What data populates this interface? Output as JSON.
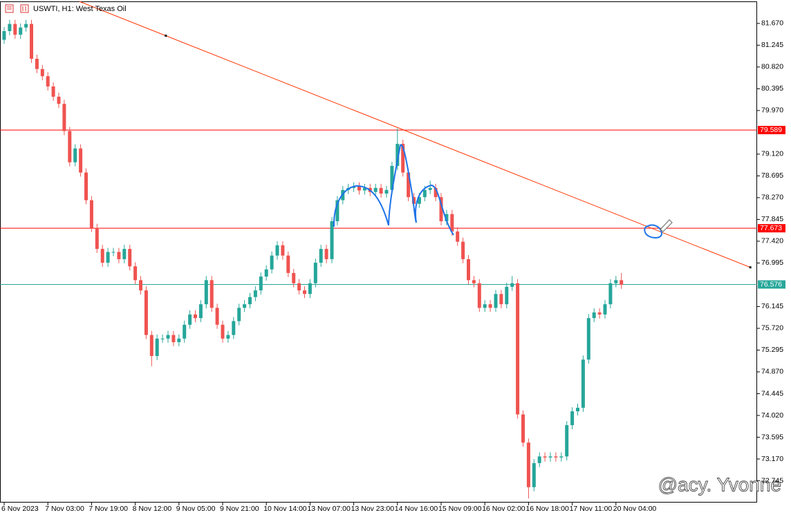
{
  "chart_data": {
    "type": "candlestick",
    "title": "USWTI, H1:  West Texas Oil",
    "watermark": "@acy. Yvonne",
    "up_color": "#26a69a",
    "down_color": "#ef5350",
    "categories": [
      "6 Nov 2023",
      null,
      null,
      null,
      null,
      null,
      null,
      null,
      "7 Nov 03:00",
      null,
      null,
      null,
      null,
      null,
      null,
      null,
      "7 Nov 19:00",
      null,
      null,
      null,
      null,
      null,
      null,
      null,
      "8 Nov 12:00",
      null,
      null,
      null,
      null,
      null,
      null,
      null,
      "9 Nov 05:00",
      null,
      null,
      null,
      null,
      null,
      null,
      null,
      "9 Nov 21:00",
      null,
      null,
      null,
      null,
      null,
      null,
      null,
      "10 Nov 14:00",
      null,
      null,
      null,
      null,
      null,
      null,
      null,
      "13 Nov 07:00",
      null,
      null,
      null,
      null,
      null,
      null,
      null,
      "13 Nov 23:00",
      null,
      null,
      null,
      null,
      null,
      null,
      null,
      "14 Nov 16:00",
      null,
      null,
      null,
      null,
      null,
      null,
      null,
      "15 Nov 09:00",
      null,
      null,
      null,
      null,
      null,
      null,
      null,
      "16 Nov 02:00",
      null,
      null,
      null,
      null,
      null,
      null,
      null,
      "16 Nov 18:00",
      null,
      null,
      null,
      null,
      null,
      null,
      null,
      "17 Nov 11:00",
      null,
      null,
      null,
      null,
      null,
      null,
      null,
      "20 Nov 04:00",
      null
    ],
    "open": [
      81.35,
      81.52,
      81.66,
      81.45,
      81.59,
      81.66,
      80.98,
      80.78,
      80.64,
      80.44,
      80.24,
      80.1,
      79.57,
      78.96,
      79.23,
      78.76,
      78.22,
      77.68,
      77.27,
      77.0,
      77.21,
      77.21,
      77.07,
      77.27,
      76.93,
      76.66,
      76.46,
      75.59,
      75.18,
      75.52,
      75.52,
      75.59,
      75.45,
      75.52,
      75.79,
      75.99,
      75.92,
      76.19,
      76.66,
      76.12,
      75.79,
      75.52,
      75.59,
      75.86,
      76.12,
      76.19,
      76.33,
      76.46,
      76.73,
      76.87,
      77.14,
      77.34,
      77.14,
      76.8,
      76.6,
      76.46,
      76.39,
      76.6,
      77.0,
      77.27,
      77.07,
      77.81,
      78.22,
      78.42,
      78.46,
      78.49,
      78.41,
      78.46,
      78.38,
      78.46,
      78.35,
      78.42,
      78.89,
      79.32,
      78.76,
      78.28,
      78.15,
      78.28,
      78.42,
      78.46,
      78.28,
      77.81,
      77.95,
      77.61,
      77.41,
      77.07,
      76.66,
      76.6,
      76.12,
      76.19,
      76.12,
      76.39,
      76.19,
      76.53,
      76.6,
      74.04,
      73.49,
      72.62,
      73.09,
      73.22,
      73.2,
      73.22,
      73.2,
      73.22,
      73.83,
      74.1,
      74.17,
      75.11,
      75.92,
      76.03,
      75.99,
      76.19,
      76.6,
      76.66
    ],
    "high": [
      81.6,
      81.74,
      81.74,
      81.67,
      81.74,
      81.74,
      81.06,
      80.86,
      80.72,
      80.52,
      80.32,
      80.18,
      79.65,
      79.31,
      79.31,
      78.84,
      78.3,
      77.76,
      77.35,
      77.29,
      77.29,
      77.29,
      77.35,
      77.35,
      77.01,
      76.74,
      76.54,
      75.67,
      75.6,
      75.6,
      75.67,
      75.67,
      75.6,
      75.87,
      76.07,
      76.07,
      76.27,
      76.74,
      76.74,
      76.2,
      75.87,
      75.67,
      75.94,
      76.2,
      76.27,
      76.41,
      76.54,
      76.81,
      76.95,
      77.22,
      77.42,
      77.42,
      77.22,
      76.88,
      76.68,
      76.54,
      76.68,
      77.08,
      77.35,
      77.35,
      77.89,
      78.3,
      78.5,
      78.54,
      78.57,
      78.57,
      78.54,
      78.54,
      78.54,
      78.54,
      78.5,
      78.97,
      79.62,
      79.4,
      78.84,
      78.36,
      78.36,
      78.5,
      78.6,
      78.54,
      78.36,
      78.03,
      78.03,
      77.69,
      77.49,
      77.15,
      76.74,
      76.68,
      76.27,
      76.27,
      76.47,
      76.47,
      76.61,
      76.74,
      76.68,
      74.12,
      73.57,
      73.17,
      73.3,
      73.3,
      73.3,
      73.3,
      73.3,
      73.91,
      74.18,
      74.25,
      75.19,
      76.0,
      76.11,
      76.11,
      76.27,
      76.68,
      76.74,
      76.8
    ],
    "low": [
      81.27,
      81.44,
      81.37,
      81.37,
      81.51,
      80.9,
      80.7,
      80.56,
      80.36,
      80.16,
      80.02,
      79.49,
      78.88,
      78.88,
      78.68,
      78.14,
      77.6,
      77.19,
      76.92,
      76.92,
      77.13,
      76.99,
      76.99,
      76.85,
      76.58,
      76.38,
      75.51,
      74.98,
      75.1,
      75.44,
      75.44,
      75.37,
      75.37,
      75.44,
      75.71,
      75.84,
      75.84,
      76.11,
      76.04,
      75.71,
      75.44,
      75.44,
      75.51,
      75.78,
      76.04,
      76.11,
      76.25,
      76.38,
      76.65,
      76.79,
      77.06,
      77.06,
      76.72,
      76.52,
      76.38,
      76.31,
      76.31,
      76.52,
      76.92,
      76.99,
      76.99,
      77.73,
      78.14,
      78.34,
      78.38,
      78.33,
      78.33,
      78.3,
      78.3,
      78.27,
      78.27,
      78.34,
      78.81,
      78.68,
      78.2,
      78.07,
      78.07,
      78.2,
      78.34,
      78.2,
      77.73,
      77.73,
      77.53,
      77.33,
      76.99,
      76.58,
      76.52,
      76.04,
      76.04,
      76.04,
      76.04,
      76.11,
      76.11,
      76.45,
      73.96,
      73.41,
      72.4,
      72.54,
      73.01,
      73.12,
      73.12,
      73.12,
      73.12,
      73.14,
      73.75,
      74.02,
      74.09,
      75.03,
      75.84,
      75.91,
      75.91,
      76.11,
      76.52,
      76.49
    ],
    "close": [
      81.52,
      81.66,
      81.45,
      81.59,
      81.66,
      80.98,
      80.78,
      80.64,
      80.44,
      80.24,
      80.1,
      79.57,
      78.96,
      79.23,
      78.76,
      78.22,
      77.68,
      77.27,
      77.0,
      77.21,
      77.21,
      77.07,
      77.27,
      76.93,
      76.66,
      76.46,
      75.59,
      75.18,
      75.52,
      75.52,
      75.59,
      75.45,
      75.52,
      75.79,
      75.99,
      75.92,
      76.19,
      76.66,
      76.12,
      75.79,
      75.52,
      75.59,
      75.86,
      76.12,
      76.19,
      76.33,
      76.46,
      76.73,
      76.87,
      77.14,
      77.34,
      77.14,
      76.8,
      76.6,
      76.46,
      76.39,
      76.6,
      77.0,
      77.27,
      77.07,
      77.81,
      78.22,
      78.42,
      78.46,
      78.49,
      78.41,
      78.46,
      78.38,
      78.46,
      78.35,
      78.42,
      78.89,
      79.32,
      78.76,
      78.28,
      78.15,
      78.28,
      78.42,
      78.46,
      78.28,
      77.81,
      77.95,
      77.61,
      77.41,
      77.07,
      76.66,
      76.6,
      76.12,
      76.19,
      76.12,
      76.39,
      76.19,
      76.53,
      76.6,
      74.04,
      73.49,
      72.62,
      73.09,
      73.22,
      73.2,
      73.22,
      73.2,
      73.22,
      73.83,
      74.1,
      74.17,
      75.11,
      75.92,
      76.03,
      75.99,
      76.19,
      76.6,
      76.66,
      76.57
    ],
    "ylim": [
      72.32,
      82.1
    ],
    "yticks": [
      {
        "value": 81.67,
        "label": "81.670"
      },
      81.245,
      {
        "value": 80.82,
        "label": "80.820"
      },
      80.395,
      {
        "value": 79.97,
        "label": "79.970"
      },
      {
        "value": 79.12,
        "label": "79.120"
      },
      78.695,
      {
        "value": 78.27,
        "label": "78.270"
      },
      77.845,
      {
        "value": 77.42,
        "label": "77.420"
      },
      76.995,
      76.145,
      {
        "value": 75.72,
        "label": "75.720"
      },
      75.295,
      {
        "value": 74.87,
        "label": "74.870"
      },
      74.445,
      {
        "value": 74.02,
        "label": "74.020"
      },
      73.595,
      {
        "value": 73.17,
        "label": "73.170"
      },
      72.745
    ],
    "levels": [
      {
        "value": 79.589,
        "color": "#ff0000"
      },
      {
        "value": 77.673,
        "color": "#ff0000"
      },
      {
        "value": 76.576,
        "color": "#26a69a"
      }
    ],
    "trendline": {
      "x": [
        29.6,
        136.6
      ],
      "y": [
        81.43,
        76.91
      ],
      "color": "#ff3300"
    }
  }
}
